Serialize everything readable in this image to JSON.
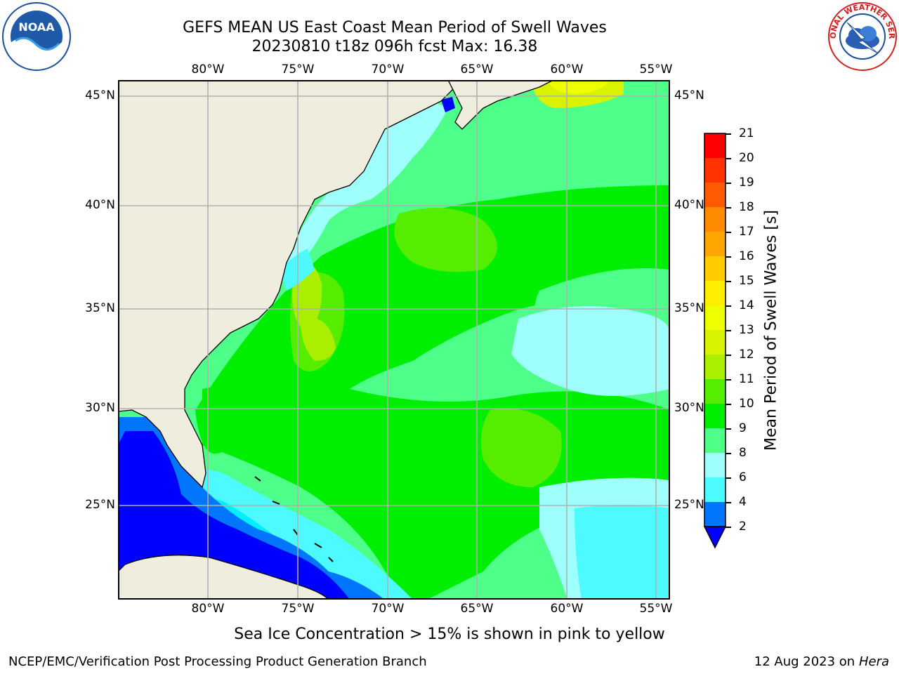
{
  "title": {
    "line1": "GEFS MEAN US East Coast Mean Period of Swell Waves",
    "line2": "20230810 t18z 096h fcst   Max: 16.38"
  },
  "logos": {
    "left": {
      "name": "noaa-logo",
      "text": "NOAA"
    },
    "right": {
      "name": "nws-logo",
      "text": "NATIONAL WEATHER SERVICE"
    }
  },
  "map": {
    "lon_labels": [
      "80°W",
      "75°W",
      "70°W",
      "65°W",
      "60°W",
      "55°W"
    ],
    "lat_labels": [
      "45°N",
      "40°N",
      "35°N",
      "30°N",
      "25°N"
    ],
    "land_color": "#efedde",
    "grid_color": "#b0b0b0"
  },
  "colorbar": {
    "label": "Mean Period of Swell Waves [s]",
    "ticks": [
      "2",
      "4",
      "6",
      "8",
      "9",
      "10",
      "11",
      "12",
      "13",
      "14",
      "15",
      "16",
      "17",
      "18",
      "19",
      "20",
      "21"
    ],
    "colors": [
      "#0076ff",
      "#00eeff",
      "#4dfaff",
      "#9efffd",
      "#4eff8a",
      "#00ee00",
      "#55ee00",
      "#aaee00",
      "#d8f200",
      "#eeff00",
      "#ffee00",
      "#ffcc00",
      "#ffa500",
      "#ff8c00",
      "#ff5a00",
      "#ff3300",
      "#ff0000"
    ],
    "extend_color": "#0000ff"
  },
  "annotation": "Sea Ice Concentration > 15% is shown in pink to yellow",
  "footer": {
    "left": "NCEP/EMC/Verification Post Processing Product Generation Branch",
    "date": "12 Aug 2023 on",
    "machine": "Hera"
  }
}
